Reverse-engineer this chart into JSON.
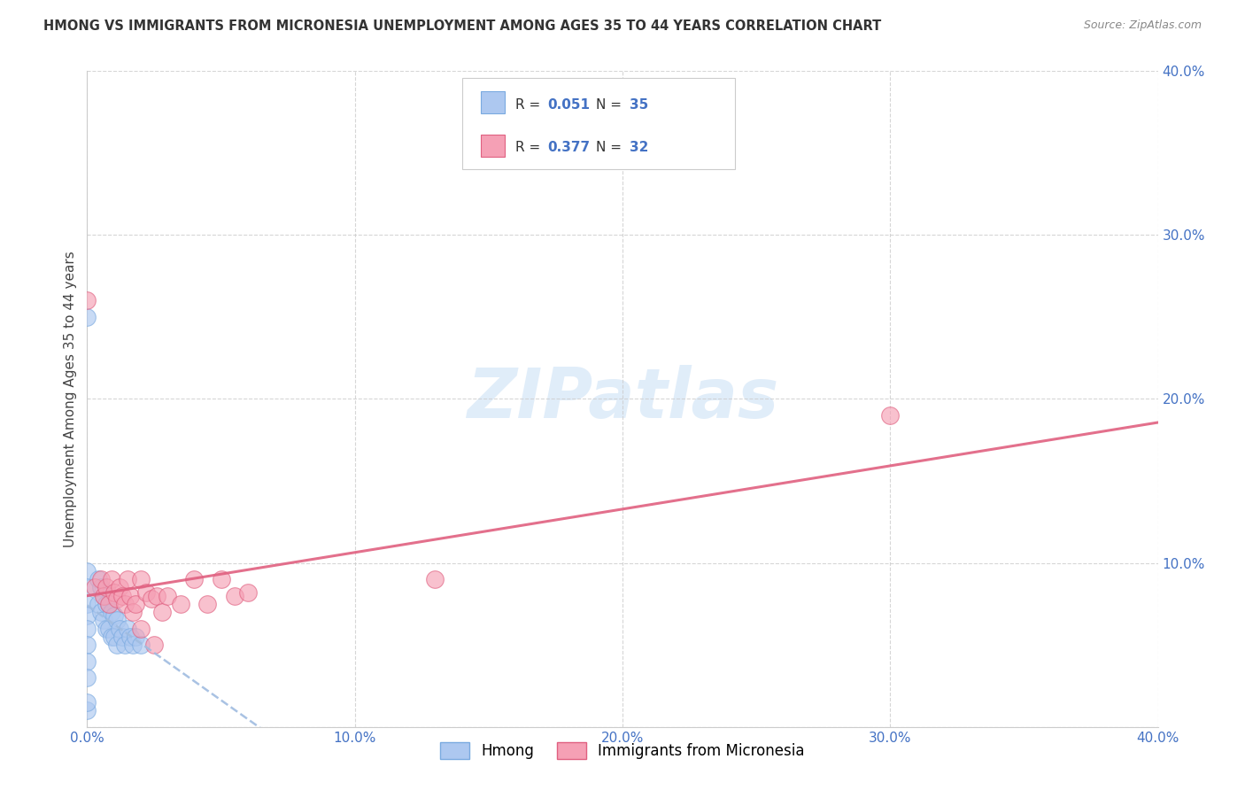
{
  "title": "HMONG VS IMMIGRANTS FROM MICRONESIA UNEMPLOYMENT AMONG AGES 35 TO 44 YEARS CORRELATION CHART",
  "source": "Source: ZipAtlas.com",
  "ylabel": "Unemployment Among Ages 35 to 44 years",
  "xlim": [
    0,
    0.4
  ],
  "ylim": [
    0,
    0.4
  ],
  "xticks": [
    0.0,
    0.1,
    0.2,
    0.3,
    0.4
  ],
  "yticks": [
    0.0,
    0.1,
    0.2,
    0.3,
    0.4
  ],
  "xticklabels": [
    "0.0%",
    "10.0%",
    "20.0%",
    "30.0%",
    "40.0%"
  ],
  "yticklabels": [
    "",
    "10.0%",
    "20.0%",
    "30.0%",
    "40.0%"
  ],
  "hmong_color": "#adc8f0",
  "hmong_edge": "#7aaae0",
  "micronesia_color": "#f5a0b5",
  "micronesia_edge": "#e06080",
  "hmong_line_color": "#a0bce0",
  "micronesia_line_color": "#e06080",
  "hmong_R": "0.051",
  "hmong_N": "35",
  "micronesia_R": "0.377",
  "micronesia_N": "32",
  "watermark": "ZIPatlas",
  "legend_label1": "Hmong",
  "legend_label2": "Immigrants from Micronesia",
  "label_color": "#4472c4",
  "hmong_x": [
    0.0,
    0.0,
    0.0,
    0.0,
    0.0,
    0.0,
    0.0,
    0.0,
    0.0,
    0.0,
    0.004,
    0.004,
    0.005,
    0.005,
    0.006,
    0.006,
    0.007,
    0.007,
    0.008,
    0.008,
    0.009,
    0.009,
    0.01,
    0.01,
    0.011,
    0.011,
    0.012,
    0.013,
    0.014,
    0.015,
    0.016,
    0.017,
    0.018,
    0.02,
    0.0
  ],
  "hmong_y": [
    0.25,
    0.095,
    0.085,
    0.075,
    0.068,
    0.06,
    0.05,
    0.04,
    0.03,
    0.01,
    0.09,
    0.075,
    0.085,
    0.07,
    0.08,
    0.065,
    0.075,
    0.06,
    0.075,
    0.06,
    0.07,
    0.055,
    0.068,
    0.055,
    0.065,
    0.05,
    0.06,
    0.055,
    0.05,
    0.06,
    0.055,
    0.05,
    0.055,
    0.05,
    0.015
  ],
  "micronesia_x": [
    0.0,
    0.003,
    0.005,
    0.006,
    0.007,
    0.008,
    0.009,
    0.01,
    0.011,
    0.012,
    0.013,
    0.014,
    0.015,
    0.016,
    0.017,
    0.018,
    0.02,
    0.022,
    0.024,
    0.026,
    0.028,
    0.03,
    0.035,
    0.04,
    0.045,
    0.05,
    0.055,
    0.06,
    0.13,
    0.3,
    0.02,
    0.025
  ],
  "micronesia_y": [
    0.26,
    0.085,
    0.09,
    0.08,
    0.085,
    0.075,
    0.09,
    0.082,
    0.078,
    0.085,
    0.08,
    0.075,
    0.09,
    0.08,
    0.07,
    0.075,
    0.09,
    0.082,
    0.078,
    0.08,
    0.07,
    0.08,
    0.075,
    0.09,
    0.075,
    0.09,
    0.08,
    0.082,
    0.09,
    0.19,
    0.06,
    0.05
  ]
}
